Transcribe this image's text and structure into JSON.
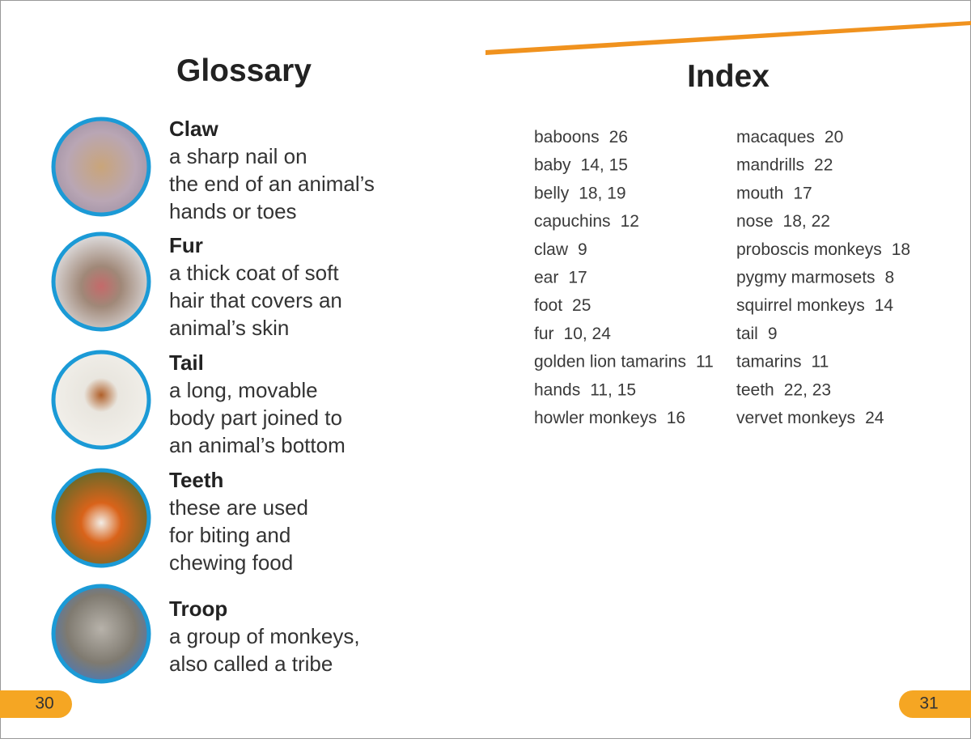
{
  "glossary": {
    "title": "Glossary",
    "entries": [
      {
        "term": "Claw",
        "definition": [
          "a sharp nail on",
          "the end of an animal’s",
          "hands or toes"
        ]
      },
      {
        "term": "Fur",
        "definition": [
          "a thick coat of soft",
          "hair that covers an",
          "animal’s skin"
        ]
      },
      {
        "term": "Tail",
        "definition": [
          "a long, movable",
          "body part joined to",
          "an animal’s bottom"
        ]
      },
      {
        "term": "Teeth",
        "definition": [
          "these are used",
          "for biting and",
          "chewing food"
        ]
      },
      {
        "term": "Troop",
        "definition": [
          "a group of monkeys,",
          "also called a tribe"
        ]
      }
    ],
    "page_number": "30"
  },
  "index": {
    "title": "Index",
    "columns": [
      [
        {
          "term": "baboons",
          "pages": "26"
        },
        {
          "term": "baby",
          "pages": "14, 15"
        },
        {
          "term": "belly",
          "pages": "18, 19"
        },
        {
          "term": "capuchins",
          "pages": "12"
        },
        {
          "term": "claw",
          "pages": "9"
        },
        {
          "term": "ear",
          "pages": "17"
        },
        {
          "term": "foot",
          "pages": "25"
        },
        {
          "term": "fur",
          "pages": "10, 24"
        },
        {
          "term": "golden lion tamarins",
          "pages": "11"
        },
        {
          "term": "hands",
          "pages": "11, 15"
        },
        {
          "term": "howler monkeys",
          "pages": "16"
        }
      ],
      [
        {
          "term": "macaques",
          "pages": "20"
        },
        {
          "term": "mandrills",
          "pages": "22"
        },
        {
          "term": "mouth",
          "pages": "17"
        },
        {
          "term": "nose",
          "pages": "18, 22"
        },
        {
          "term": "proboscis monkeys",
          "pages": "18"
        },
        {
          "term": "pygmy marmosets",
          "pages": "8"
        },
        {
          "term": "squirrel monkeys",
          "pages": "14"
        },
        {
          "term": "tail",
          "pages": "9"
        },
        {
          "term": "tamarins",
          "pages": "11"
        },
        {
          "term": "teeth",
          "pages": "22, 23"
        },
        {
          "term": "vervet monkeys",
          "pages": "24"
        }
      ]
    ],
    "page_number": "31"
  }
}
